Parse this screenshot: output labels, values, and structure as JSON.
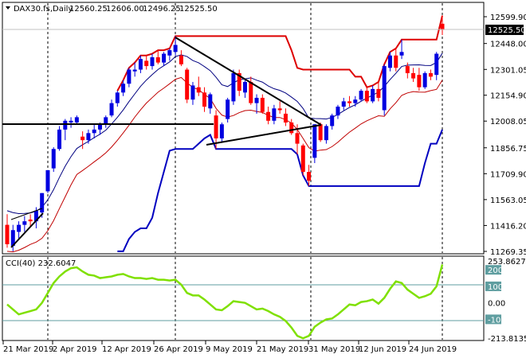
{
  "header": {
    "symbol": "DAX30.fs,Daily",
    "open": "12560.25",
    "high": "12606.00",
    "low": "12496.25",
    "close": "12525.50"
  },
  "price_axis": {
    "ticks": [
      "12599.90",
      "12448.00",
      "12301.05",
      "12154.90",
      "12008.05",
      "11856.75",
      "11709.90",
      "11563.05",
      "11416.20",
      "11269.35"
    ],
    "current_price_label": "12525.50"
  },
  "indicator": {
    "label": "CCI(40) 232.6047",
    "axis_ticks": [
      "253.8627",
      "200",
      "100",
      "0.00",
      "-100",
      "-213.8135"
    ],
    "line_color": "#7fe000"
  },
  "date_axis": {
    "labels": [
      "21 Mar 2019",
      "2 Apr 2019",
      "12 Apr 2019",
      "26 Apr 2019",
      "9 May 2019",
      "21 May 2019",
      "31 May 2019",
      "12 Jun 2019",
      "24 Jun 2019"
    ]
  },
  "colors": {
    "bull_candle": "#0000e0",
    "bear_candle": "#ff0000",
    "donchian_upper": "#dd0000",
    "donchian_lower": "#0000c0",
    "bb_upper": "#000080",
    "bb_lower": "#c00000",
    "trendline": "#000000",
    "indicator_bg_band": "#ffffff"
  },
  "chart_data": {
    "type": "candlestick",
    "symbol": "DAX30.fs",
    "timeframe": "Daily",
    "candles": [
      {
        "o": 11420,
        "h": 11480,
        "l": 11290,
        "c": 11310
      },
      {
        "o": 11300,
        "h": 11420,
        "l": 11270,
        "c": 11390
      },
      {
        "o": 11380,
        "h": 11440,
        "l": 11340,
        "c": 11420
      },
      {
        "o": 11420,
        "h": 11470,
        "l": 11380,
        "c": 11440
      },
      {
        "o": 11450,
        "h": 11480,
        "l": 11410,
        "c": 11440
      },
      {
        "o": 11440,
        "h": 11520,
        "l": 11400,
        "c": 11500
      },
      {
        "o": 11490,
        "h": 11600,
        "l": 11460,
        "c": 11600
      },
      {
        "o": 11610,
        "h": 11730,
        "l": 11600,
        "c": 11730
      },
      {
        "o": 11740,
        "h": 11860,
        "l": 11720,
        "c": 11850
      },
      {
        "o": 11850,
        "h": 11980,
        "l": 11840,
        "c": 11960
      },
      {
        "o": 11960,
        "h": 12020,
        "l": 11900,
        "c": 12010
      },
      {
        "o": 12000,
        "h": 12030,
        "l": 11970,
        "c": 12010
      },
      {
        "o": 12000,
        "h": 12040,
        "l": 11990,
        "c": 12030
      },
      {
        "o": 11920,
        "h": 11950,
        "l": 11850,
        "c": 11900
      },
      {
        "o": 11900,
        "h": 11960,
        "l": 11880,
        "c": 11940
      },
      {
        "o": 11940,
        "h": 11990,
        "l": 11910,
        "c": 11960
      },
      {
        "o": 11960,
        "h": 12000,
        "l": 11930,
        "c": 11990
      },
      {
        "o": 11990,
        "h": 12040,
        "l": 11970,
        "c": 12030
      },
      {
        "o": 12040,
        "h": 12130,
        "l": 12030,
        "c": 12110
      },
      {
        "o": 12110,
        "h": 12180,
        "l": 12090,
        "c": 12170
      },
      {
        "o": 12170,
        "h": 12240,
        "l": 12150,
        "c": 12220
      },
      {
        "o": 12220,
        "h": 12310,
        "l": 12200,
        "c": 12300
      },
      {
        "o": 12290,
        "h": 12340,
        "l": 12260,
        "c": 12300
      },
      {
        "o": 12300,
        "h": 12380,
        "l": 12280,
        "c": 12360
      },
      {
        "o": 12350,
        "h": 12380,
        "l": 12300,
        "c": 12320
      },
      {
        "o": 12320,
        "h": 12390,
        "l": 12300,
        "c": 12370
      },
      {
        "o": 12370,
        "h": 12410,
        "l": 12330,
        "c": 12340
      },
      {
        "o": 12340,
        "h": 12400,
        "l": 12320,
        "c": 12390
      },
      {
        "o": 12380,
        "h": 12420,
        "l": 12350,
        "c": 12410
      },
      {
        "o": 12400,
        "h": 12490,
        "l": 12380,
        "c": 12440
      },
      {
        "o": 12380,
        "h": 12410,
        "l": 12320,
        "c": 12330
      },
      {
        "o": 12300,
        "h": 12310,
        "l": 12110,
        "c": 12130
      },
      {
        "o": 12130,
        "h": 12230,
        "l": 12100,
        "c": 12210
      },
      {
        "o": 12200,
        "h": 12260,
        "l": 12150,
        "c": 12170
      },
      {
        "o": 12170,
        "h": 12200,
        "l": 12060,
        "c": 12090
      },
      {
        "o": 12080,
        "h": 12170,
        "l": 12050,
        "c": 12160
      },
      {
        "o": 12040,
        "h": 12070,
        "l": 11850,
        "c": 11910
      },
      {
        "o": 11910,
        "h": 12000,
        "l": 11890,
        "c": 11990
      },
      {
        "o": 12020,
        "h": 12140,
        "l": 12000,
        "c": 12130
      },
      {
        "o": 12120,
        "h": 12300,
        "l": 12100,
        "c": 12280
      },
      {
        "o": 12280,
        "h": 12300,
        "l": 12150,
        "c": 12180
      },
      {
        "o": 12170,
        "h": 12250,
        "l": 12140,
        "c": 12230
      },
      {
        "o": 12230,
        "h": 12260,
        "l": 12100,
        "c": 12110
      },
      {
        "o": 12110,
        "h": 12160,
        "l": 12050,
        "c": 12140
      },
      {
        "o": 12140,
        "h": 12160,
        "l": 12050,
        "c": 12060
      },
      {
        "o": 12060,
        "h": 12090,
        "l": 11990,
        "c": 12010
      },
      {
        "o": 12010,
        "h": 12100,
        "l": 11990,
        "c": 12080
      },
      {
        "o": 12080,
        "h": 12120,
        "l": 12050,
        "c": 12070
      },
      {
        "o": 12050,
        "h": 12080,
        "l": 11980,
        "c": 12000
      },
      {
        "o": 12000,
        "h": 12020,
        "l": 11930,
        "c": 11940
      },
      {
        "o": 11940,
        "h": 11990,
        "l": 11820,
        "c": 11880
      },
      {
        "o": 11870,
        "h": 11880,
        "l": 11700,
        "c": 11720
      },
      {
        "o": 11720,
        "h": 11760,
        "l": 11640,
        "c": 11670
      },
      {
        "o": 11800,
        "h": 11990,
        "l": 11770,
        "c": 11990
      },
      {
        "o": 11990,
        "h": 12000,
        "l": 11890,
        "c": 11900
      },
      {
        "o": 11900,
        "h": 11990,
        "l": 11880,
        "c": 11980
      },
      {
        "o": 11980,
        "h": 12050,
        "l": 11960,
        "c": 12040
      },
      {
        "o": 12040,
        "h": 12100,
        "l": 12020,
        "c": 12090
      },
      {
        "o": 12090,
        "h": 12140,
        "l": 12070,
        "c": 12120
      },
      {
        "o": 12120,
        "h": 12150,
        "l": 12090,
        "c": 12110
      },
      {
        "o": 12110,
        "h": 12150,
        "l": 12090,
        "c": 12130
      },
      {
        "o": 12130,
        "h": 12190,
        "l": 12120,
        "c": 12180
      },
      {
        "o": 12180,
        "h": 12200,
        "l": 12110,
        "c": 12120
      },
      {
        "o": 12120,
        "h": 12210,
        "l": 12110,
        "c": 12190
      },
      {
        "o": 12190,
        "h": 12230,
        "l": 12120,
        "c": 12140
      },
      {
        "o": 12070,
        "h": 12330,
        "l": 12040,
        "c": 12320
      },
      {
        "o": 12310,
        "h": 12400,
        "l": 12290,
        "c": 12380
      },
      {
        "o": 12380,
        "h": 12420,
        "l": 12290,
        "c": 12310
      },
      {
        "o": 12380,
        "h": 12470,
        "l": 12360,
        "c": 12400
      },
      {
        "o": 12320,
        "h": 12340,
        "l": 12250,
        "c": 12280
      },
      {
        "o": 12280,
        "h": 12310,
        "l": 12230,
        "c": 12250
      },
      {
        "o": 12270,
        "h": 12310,
        "l": 12180,
        "c": 12200
      },
      {
        "o": 12200,
        "h": 12290,
        "l": 12190,
        "c": 12280
      },
      {
        "o": 12280,
        "h": 12300,
        "l": 12240,
        "c": 12260
      },
      {
        "o": 12270,
        "h": 12400,
        "l": 12240,
        "c": 12390
      },
      {
        "o": 12560,
        "h": 12606,
        "l": 12496,
        "c": 12525
      }
    ],
    "cci_values": [
      -10,
      -40,
      -70,
      -60,
      -50,
      -40,
      0,
      60,
      120,
      160,
      190,
      210,
      215,
      190,
      170,
      165,
      150,
      155,
      160,
      170,
      175,
      160,
      150,
      150,
      145,
      150,
      140,
      140,
      135,
      140,
      110,
      60,
      45,
      45,
      20,
      -10,
      -40,
      -45,
      -20,
      10,
      5,
      0,
      -20,
      -40,
      -35,
      -50,
      -70,
      -85,
      -110,
      -150,
      -200,
      -215,
      -200,
      -145,
      -120,
      -100,
      -95,
      -70,
      -40,
      -10,
      -15,
      5,
      10,
      20,
      -5,
      30,
      85,
      130,
      120,
      80,
      55,
      30,
      40,
      55,
      100,
      232.6
    ]
  }
}
